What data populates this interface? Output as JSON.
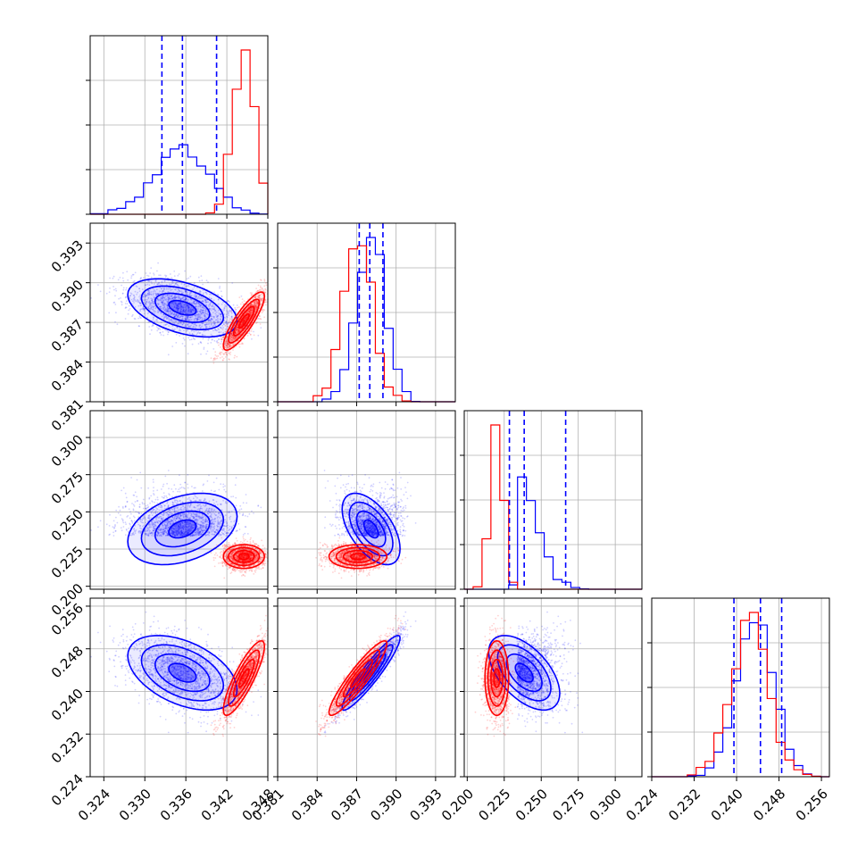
{
  "chart_data": {
    "type": "corner",
    "grid": true,
    "series": [
      {
        "color": "#0000ff",
        "means": [
          0.3355,
          0.3881,
          0.2385,
          0.2435
        ],
        "sds": [
          0.004,
          0.0011,
          0.012,
          0.0035
        ],
        "quantiles": [
          [
            0.3325,
            0.3355,
            0.3405
          ],
          [
            0.3872,
            0.388,
            0.389
          ],
          [
            0.2285,
            0.2385,
            0.2665
          ],
          [
            0.2395,
            0.2445,
            0.2485
          ]
        ]
      },
      {
        "color": "#ff0000",
        "means": [
          0.3445,
          0.3871,
          0.22,
          0.2425
        ],
        "sds": [
          0.0015,
          0.0011,
          0.004,
          0.0035
        ]
      }
    ],
    "params": [
      {
        "range": [
          0.322,
          0.348
        ],
        "ticks": [
          "0.324",
          "0.330",
          "0.336",
          "0.342",
          "0.348"
        ]
      },
      {
        "range": [
          0.381,
          0.3945
        ],
        "ticks": [
          "0.381",
          "0.384",
          "0.387",
          "0.390",
          "0.393"
        ]
      },
      {
        "range": [
          0.198,
          0.318
        ],
        "ticks": [
          "0.200",
          "0.225",
          "0.250",
          "0.275",
          "0.300"
        ]
      },
      {
        "range": [
          0.224,
          0.2575
        ],
        "ticks": [
          "0.224",
          "0.232",
          "0.240",
          "0.248",
          "0.256"
        ]
      }
    ]
  }
}
